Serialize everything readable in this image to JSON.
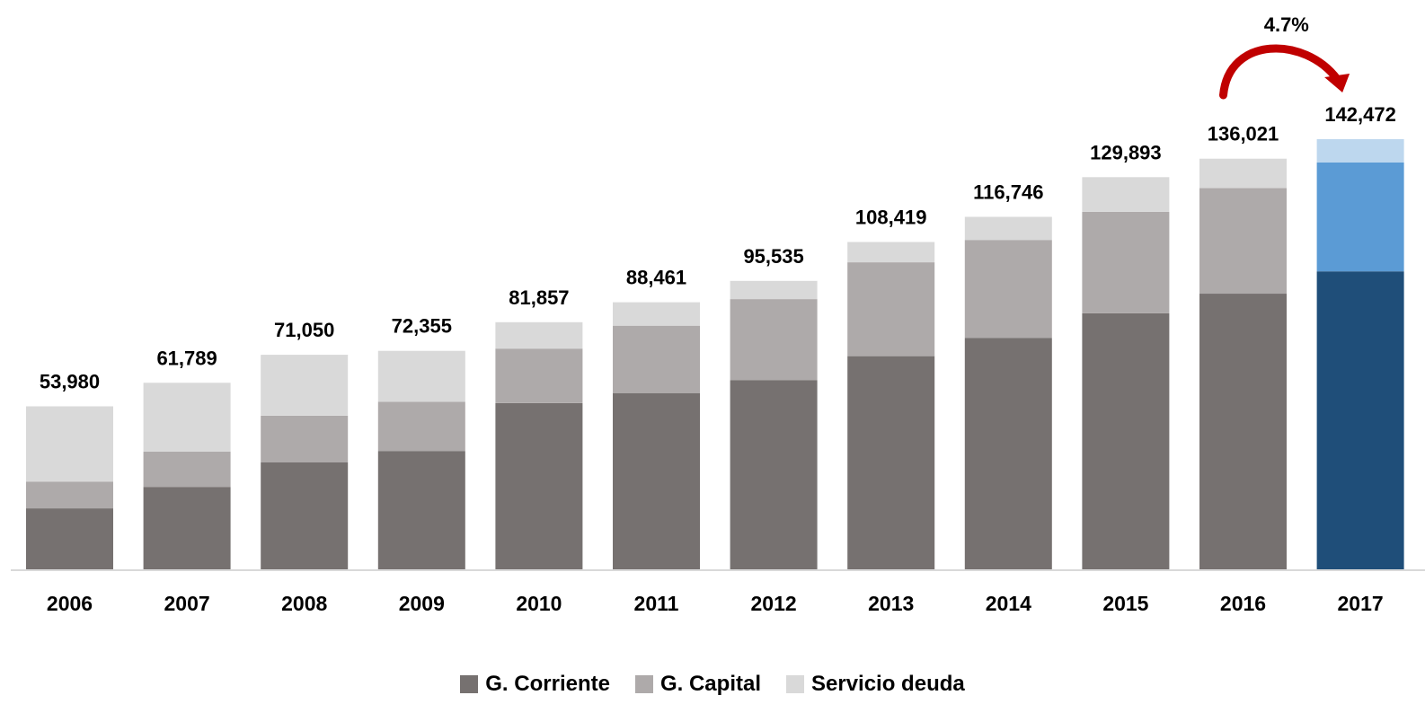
{
  "chart_data": {
    "type": "bar",
    "stacked": true,
    "categories": [
      "2006",
      "2007",
      "2008",
      "2009",
      "2010",
      "2011",
      "2012",
      "2013",
      "2014",
      "2015",
      "2016",
      "2017"
    ],
    "series": [
      {
        "name": "G. Corriente",
        "values": [
          20200,
          27300,
          35400,
          39100,
          55100,
          58300,
          62600,
          70600,
          76600,
          84800,
          91300,
          98700
        ]
      },
      {
        "name": "G. Capital",
        "values": [
          8800,
          11700,
          15500,
          16400,
          18000,
          22400,
          26900,
          31100,
          32500,
          33600,
          35000,
          36100
        ]
      },
      {
        "name": "Servicio deuda",
        "values": [
          24980,
          22789,
          20150,
          16855,
          8757,
          7761,
          6035,
          6719,
          7646,
          11493,
          9721,
          7672
        ]
      }
    ],
    "totals": [
      "53,980",
      "61,789",
      "71,050",
      "72,355",
      "81,857",
      "88,461",
      "95,535",
      "108,419",
      "116,746",
      "129,893",
      "136,021",
      "142,472"
    ],
    "annotation": {
      "text": "4.7%",
      "from": "2016",
      "to": "2017"
    },
    "ylim": [
      0,
      160000
    ],
    "grid": false,
    "legend_position": "bottom",
    "colors": {
      "G. Corriente": "#767170",
      "G. Capital": "#aeaaaa",
      "Servicio deuda": "#d9d9d9",
      "highlight": [
        "#1f4e79",
        "#5b9bd5",
        "#bdd7ee"
      ],
      "arrow": "#c00000"
    }
  },
  "legend": {
    "items": [
      {
        "label": "G. Corriente",
        "color": "#767170"
      },
      {
        "label": "G. Capital",
        "color": "#aeaaaa"
      },
      {
        "label": "Servicio deuda",
        "color": "#d9d9d9"
      }
    ]
  }
}
